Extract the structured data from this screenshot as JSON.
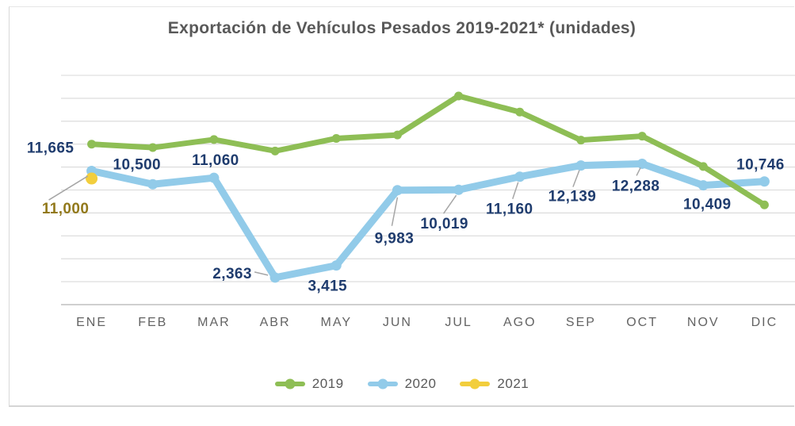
{
  "title": "Exportación de Vehículos Pesados 2019-2021* (unidades)",
  "chart_data": {
    "type": "line",
    "title": "Exportación de Vehículos Pesados 2019-2021* (unidades)",
    "categories": [
      "ENE",
      "FEB",
      "MAR",
      "ABR",
      "MAY",
      "JUN",
      "JUL",
      "AGO",
      "SEP",
      "OCT",
      "NOV",
      "DIC"
    ],
    "series": [
      {
        "name": "2019",
        "color": "#8EBE55",
        "show_labels": false,
        "values_estimated": true,
        "values": [
          14000,
          13700,
          14400,
          13400,
          14500,
          14800,
          18200,
          16800,
          14350,
          14700,
          12050,
          8700
        ]
      },
      {
        "name": "2020",
        "color": "#92CBE9",
        "show_labels": true,
        "label_color": "#1F3C6E",
        "values": [
          11665,
          10500,
          11060,
          2363,
          3415,
          9983,
          10019,
          11160,
          12139,
          12288,
          10409,
          10746
        ]
      },
      {
        "name": "2021",
        "color": "#F2CE3D",
        "show_labels": true,
        "label_color": "#92791B",
        "values": [
          11000,
          null,
          null,
          null,
          null,
          null,
          null,
          null,
          null,
          null,
          null,
          null
        ]
      }
    ],
    "xlabel": "",
    "ylabel": "",
    "ylim": [
      0,
      20000
    ],
    "gridline_step": 2000,
    "grid": true,
    "y_axis_labels_visible": false,
    "legend_position": "bottom"
  },
  "colors": {
    "title_text": "#595959",
    "axis_text": "#636363",
    "legend_text": "#595959",
    "gridline": "#D9D9D9",
    "axis_line": "#BFBFBF",
    "callout": "#A6A6A6",
    "frame_border": "#D9D9D9"
  }
}
